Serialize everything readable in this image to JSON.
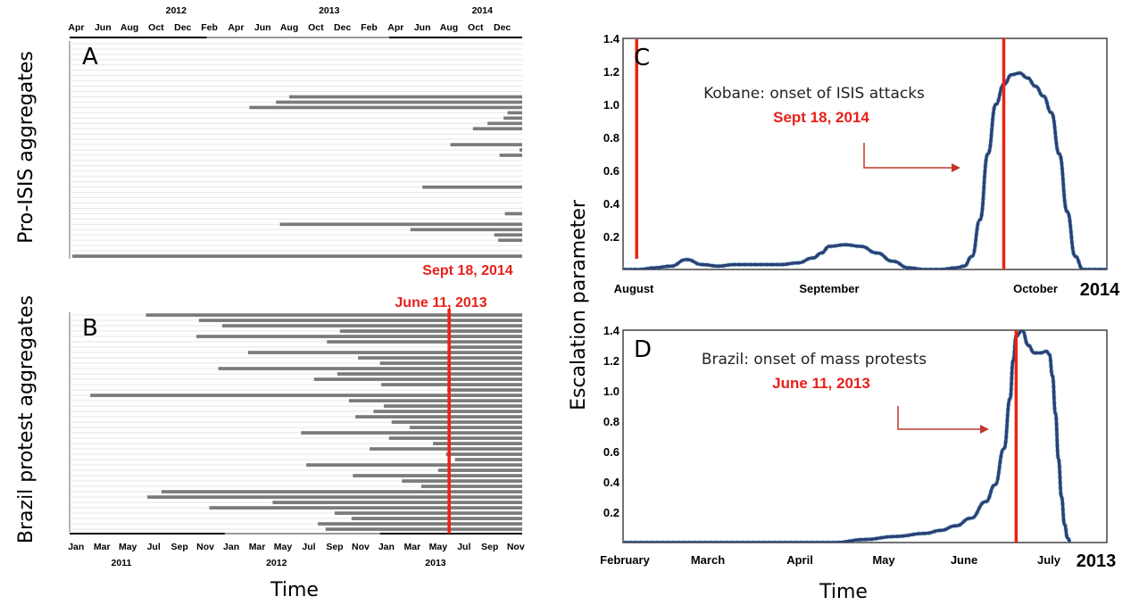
{
  "ylabel_left_A": "Pro-ISIS aggregates",
  "ylabel_left_B": "Brazil protest aggregates",
  "xlabel_left": "Time",
  "xlabel_right": "Time",
  "ylabel_right": "Escalation parameter",
  "colors": {
    "onset_line": "#ee2211",
    "bar": "#7a7a7a",
    "curve": "#2e3f77",
    "fit": "#7fd6d6"
  },
  "chart_data": [
    {
      "type": "bar",
      "panel": "A",
      "title": "A",
      "year_labels": [
        "2012",
        "2013",
        "2014"
      ],
      "tick_labels": [
        "Apr",
        "Jun",
        "Aug",
        "Oct",
        "Dec",
        "Feb",
        "Apr",
        "Jun",
        "Aug",
        "Oct",
        "Dec",
        "Feb",
        "Apr",
        "Jun",
        "Aug",
        "Oct",
        "Dec"
      ],
      "x_range_months": [
        "2011-03",
        "2014-12"
      ],
      "onset_label": "Sept 18, 2014",
      "onset_month": 42.6,
      "bars_start_month": [
        39.0,
        40.5,
        41.0,
        38.7,
        41.5,
        39.8,
        40.6,
        36.3,
        41.0,
        38.1,
        16.5,
        15.5,
        13.5,
        32.9,
        32.6,
        31.4,
        30.3,
        35.2,
        34.6,
        28.6,
        33.8,
        32.3,
        39.7,
        41.2,
        40.8,
        42.8,
        37.8,
        26.5,
        39.4,
        36.9,
        38.8,
        35.1,
        32.7,
        38.3,
        15.8,
        25.6,
        31.9,
        32.2,
        38.7,
        37.6,
        0.2
      ]
    },
    {
      "type": "bar",
      "panel": "B",
      "title": "B",
      "year_labels": [
        "2011",
        "2012",
        "2013"
      ],
      "tick_labels": [
        "Jan",
        "Mar",
        "May",
        "Jul",
        "Sep",
        "Nov",
        "Jan",
        "Mar",
        "May",
        "Jul",
        "Sep",
        "Nov",
        "Jan",
        "Mar",
        "May",
        "Jul",
        "Sep",
        "Nov"
      ],
      "x_range_months": [
        "2011-01",
        "2013-11"
      ],
      "onset_label": "June 11, 2013",
      "onset_month": 29.35,
      "bars_start_month": [
        5.9,
        10.0,
        11.8,
        20.9,
        9.8,
        19.9,
        29.3,
        13.8,
        22.3,
        24.0,
        11.5,
        20.7,
        18.9,
        24.1,
        29.2,
        1.6,
        21.6,
        24.3,
        23.5,
        22.1,
        24.9,
        26.3,
        17.9,
        24.7,
        28.1,
        23.2,
        29.1,
        29.8,
        18.3,
        28.5,
        21.9,
        25.7,
        27.2,
        7.1,
        6.0,
        15.7,
        10.8,
        20.5,
        21.8,
        19.2,
        19.8
      ]
    },
    {
      "type": "line",
      "panel": "C",
      "title": "C",
      "annotation": "Kobane: onset of ISIS attacks",
      "onset_label": "Sept 18, 2014",
      "x_ticks": [
        "August",
        "September",
        "October"
      ],
      "year_label": "2014",
      "ylim": [
        0,
        1.4
      ],
      "y_ticks": [
        "0.2",
        "0.4",
        "0.6",
        "0.8",
        "1.0",
        "1.2",
        "1.4"
      ],
      "xlim": [
        0,
        61
      ],
      "onset_x": 48,
      "series": [
        {
          "x": [
            0,
            2,
            4,
            6,
            8,
            10,
            12,
            14,
            16,
            18,
            20,
            22,
            24,
            25,
            26,
            28,
            30,
            32,
            34,
            36,
            38,
            40,
            42,
            43,
            44,
            45,
            46,
            47,
            48,
            49,
            50,
            51,
            52,
            53,
            54,
            55,
            56,
            57,
            58,
            59,
            60,
            61
          ],
          "y": [
            0,
            0,
            0.01,
            0.02,
            0.06,
            0.03,
            0.02,
            0.03,
            0.03,
            0.03,
            0.03,
            0.04,
            0.07,
            0.1,
            0.14,
            0.15,
            0.14,
            0.1,
            0.05,
            0.01,
            0,
            0,
            0.01,
            0.02,
            0.08,
            0.3,
            0.7,
            1.0,
            1.12,
            1.18,
            1.19,
            1.16,
            1.11,
            1.05,
            0.95,
            0.7,
            0.35,
            0.08,
            0.0,
            0,
            0,
            0
          ]
        }
      ]
    },
    {
      "type": "line",
      "panel": "D",
      "title": "D",
      "annotation": "Brazil: onset of mass protests",
      "onset_label": "June 11, 2013",
      "x_ticks": [
        "February",
        "March",
        "April",
        "May",
        "June",
        "July"
      ],
      "year_label": "2013",
      "ylim": [
        0,
        1.4
      ],
      "y_ticks": [
        "0.2",
        "0.4",
        "0.6",
        "0.8",
        "1.0",
        "1.2",
        "1.4"
      ],
      "xlim": [
        0,
        160
      ],
      "onset_x": 130,
      "series": [
        {
          "x": [
            0,
            20,
            40,
            60,
            70,
            80,
            90,
            100,
            105,
            110,
            115,
            120,
            123,
            126,
            128,
            129,
            130,
            132,
            134,
            136,
            138,
            140,
            141,
            142,
            143,
            144,
            145,
            146,
            147,
            148
          ],
          "y": [
            0,
            0,
            0,
            0,
            0,
            0.02,
            0.04,
            0.06,
            0.08,
            0.11,
            0.16,
            0.27,
            0.38,
            0.62,
            0.95,
            1.2,
            1.36,
            1.4,
            1.3,
            1.25,
            1.25,
            1.26,
            1.24,
            1.1,
            0.85,
            0.55,
            0.3,
            0.12,
            0.03,
            0
          ]
        }
      ]
    }
  ]
}
